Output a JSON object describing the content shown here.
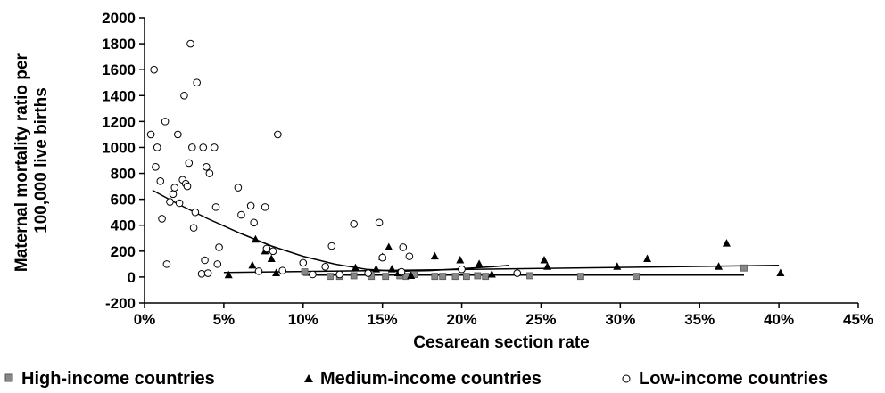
{
  "chart_data": {
    "type": "scatter",
    "title": "",
    "xlabel": "Cesarean section rate",
    "ylabel": "Maternal mortality ratio per 100,000 live births",
    "ylabel_lines": [
      "Maternal mortality ratio per",
      "100,000 live births"
    ],
    "xlim": [
      0,
      45
    ],
    "ylim": [
      -200,
      2000
    ],
    "x_ticks": [
      0,
      5,
      10,
      15,
      20,
      25,
      30,
      35,
      40,
      45
    ],
    "x_tick_labels": [
      "0%",
      "5%",
      "10%",
      "15%",
      "20%",
      "25%",
      "30%",
      "35%",
      "40%",
      "45%"
    ],
    "y_ticks": [
      -200,
      0,
      200,
      400,
      600,
      800,
      1000,
      1200,
      1400,
      1600,
      1800,
      2000
    ],
    "y_tick_labels": [
      "-200",
      "0",
      "200",
      "400",
      "600",
      "800",
      "1000",
      "1200",
      "1400",
      "1600",
      "1800",
      "2000"
    ],
    "grid": false,
    "legend_position": "bottom",
    "series": [
      {
        "name": "High-income countries",
        "marker": "square",
        "color": "#888888",
        "points": [
          [
            10.1,
            40
          ],
          [
            11.7,
            5
          ],
          [
            12.3,
            5
          ],
          [
            13.2,
            10
          ],
          [
            14.3,
            5
          ],
          [
            15.2,
            5
          ],
          [
            16.1,
            10
          ],
          [
            16.5,
            5
          ],
          [
            17.0,
            20
          ],
          [
            18.3,
            5
          ],
          [
            18.8,
            5
          ],
          [
            19.6,
            5
          ],
          [
            20.3,
            5
          ],
          [
            21.0,
            10
          ],
          [
            21.5,
            5
          ],
          [
            24.3,
            10
          ],
          [
            27.5,
            5
          ],
          [
            31.0,
            5
          ],
          [
            37.8,
            70
          ]
        ]
      },
      {
        "name": "Medium-income countries",
        "marker": "triangle",
        "color": "#000000",
        "points": [
          [
            5.3,
            15
          ],
          [
            6.8,
            90
          ],
          [
            7.0,
            290
          ],
          [
            7.6,
            200
          ],
          [
            8.0,
            140
          ],
          [
            8.3,
            30
          ],
          [
            13.3,
            70
          ],
          [
            14.6,
            60
          ],
          [
            15.0,
            155
          ],
          [
            15.4,
            230
          ],
          [
            15.6,
            60
          ],
          [
            16.0,
            30
          ],
          [
            16.8,
            10
          ],
          [
            18.3,
            160
          ],
          [
            19.9,
            130
          ],
          [
            21.1,
            100
          ],
          [
            21.9,
            20
          ],
          [
            25.2,
            130
          ],
          [
            25.4,
            80
          ],
          [
            29.8,
            80
          ],
          [
            31.7,
            140
          ],
          [
            36.2,
            80
          ],
          [
            36.7,
            260
          ],
          [
            40.1,
            30
          ]
        ]
      },
      {
        "name": "Low-income countries",
        "marker": "circle",
        "color": "#000000",
        "points": [
          [
            0.4,
            1100
          ],
          [
            0.6,
            1600
          ],
          [
            0.7,
            850
          ],
          [
            0.8,
            1000
          ],
          [
            1.0,
            740
          ],
          [
            1.1,
            450
          ],
          [
            1.3,
            1200
          ],
          [
            1.4,
            100
          ],
          [
            1.6,
            580
          ],
          [
            1.8,
            640
          ],
          [
            1.9,
            690
          ],
          [
            2.1,
            1100
          ],
          [
            2.2,
            570
          ],
          [
            2.4,
            750
          ],
          [
            2.5,
            1400
          ],
          [
            2.6,
            720
          ],
          [
            2.7,
            700
          ],
          [
            2.8,
            880
          ],
          [
            2.9,
            1800
          ],
          [
            3.0,
            1000
          ],
          [
            3.1,
            380
          ],
          [
            3.2,
            500
          ],
          [
            3.3,
            1500
          ],
          [
            3.6,
            25
          ],
          [
            3.7,
            1000
          ],
          [
            3.8,
            130
          ],
          [
            3.9,
            850
          ],
          [
            4.0,
            30
          ],
          [
            4.1,
            800
          ],
          [
            4.4,
            1000
          ],
          [
            4.5,
            540
          ],
          [
            4.6,
            100
          ],
          [
            4.7,
            230
          ],
          [
            5.9,
            690
          ],
          [
            6.1,
            480
          ],
          [
            6.7,
            550
          ],
          [
            6.9,
            420
          ],
          [
            7.2,
            45
          ],
          [
            7.6,
            540
          ],
          [
            7.7,
            220
          ],
          [
            8.1,
            200
          ],
          [
            8.4,
            1100
          ],
          [
            8.7,
            50
          ],
          [
            10.0,
            110
          ],
          [
            10.6,
            20
          ],
          [
            11.4,
            80
          ],
          [
            11.8,
            240
          ],
          [
            12.3,
            20
          ],
          [
            13.2,
            410
          ],
          [
            14.1,
            30
          ],
          [
            14.8,
            420
          ],
          [
            15.0,
            150
          ],
          [
            16.3,
            230
          ],
          [
            16.7,
            160
          ],
          [
            16.2,
            40
          ],
          [
            20.0,
            60
          ],
          [
            23.5,
            30
          ]
        ]
      }
    ],
    "trend_lines": [
      {
        "series": "Low-income countries",
        "points": [
          [
            0.5,
            670
          ],
          [
            2,
            570
          ],
          [
            4,
            450
          ],
          [
            6,
            340
          ],
          [
            8,
            240
          ],
          [
            10,
            160
          ],
          [
            12,
            100
          ],
          [
            14,
            60
          ],
          [
            16,
            45
          ],
          [
            18,
            50
          ],
          [
            20,
            65
          ],
          [
            22,
            80
          ],
          [
            23,
            90
          ]
        ]
      },
      {
        "series": "Medium-income countries",
        "points": [
          [
            5,
            35
          ],
          [
            40,
            90
          ]
        ]
      },
      {
        "series": "High-income countries",
        "points": [
          [
            10,
            15
          ],
          [
            37.8,
            15
          ]
        ]
      }
    ]
  }
}
